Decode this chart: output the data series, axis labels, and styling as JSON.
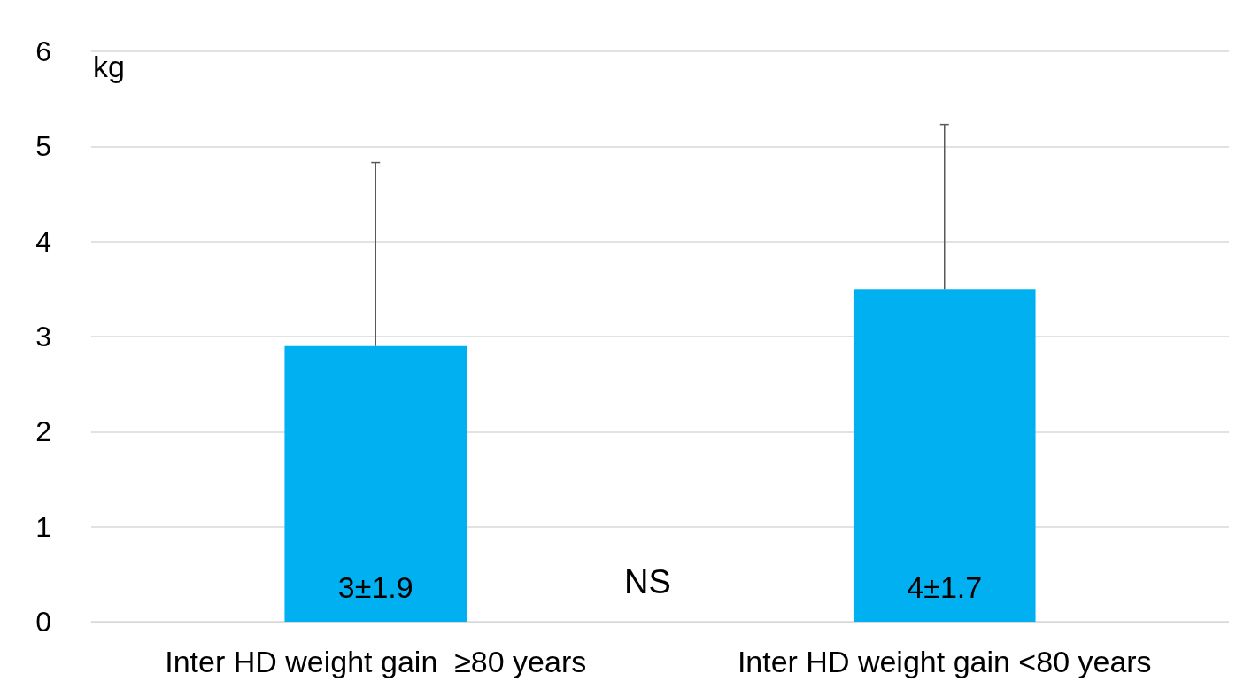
{
  "chart_data": {
    "type": "bar",
    "ylabel": "kg",
    "categories": [
      "Inter HD weight gain  ≥80 years",
      "Inter HD weight gain <80 years"
    ],
    "values": [
      2.9,
      3.5
    ],
    "color": "#00b0f0",
    "errors": [
      [
        2.9,
        4.83
      ],
      [
        3.5,
        5.23
      ]
    ],
    "value_labels": [
      "3±1.9",
      "4±1.7"
    ],
    "ylim": [
      0,
      6
    ],
    "yticks": [
      0,
      1,
      2,
      3,
      4,
      5,
      6
    ],
    "grid": "y",
    "annotations": [
      "NS"
    ]
  }
}
